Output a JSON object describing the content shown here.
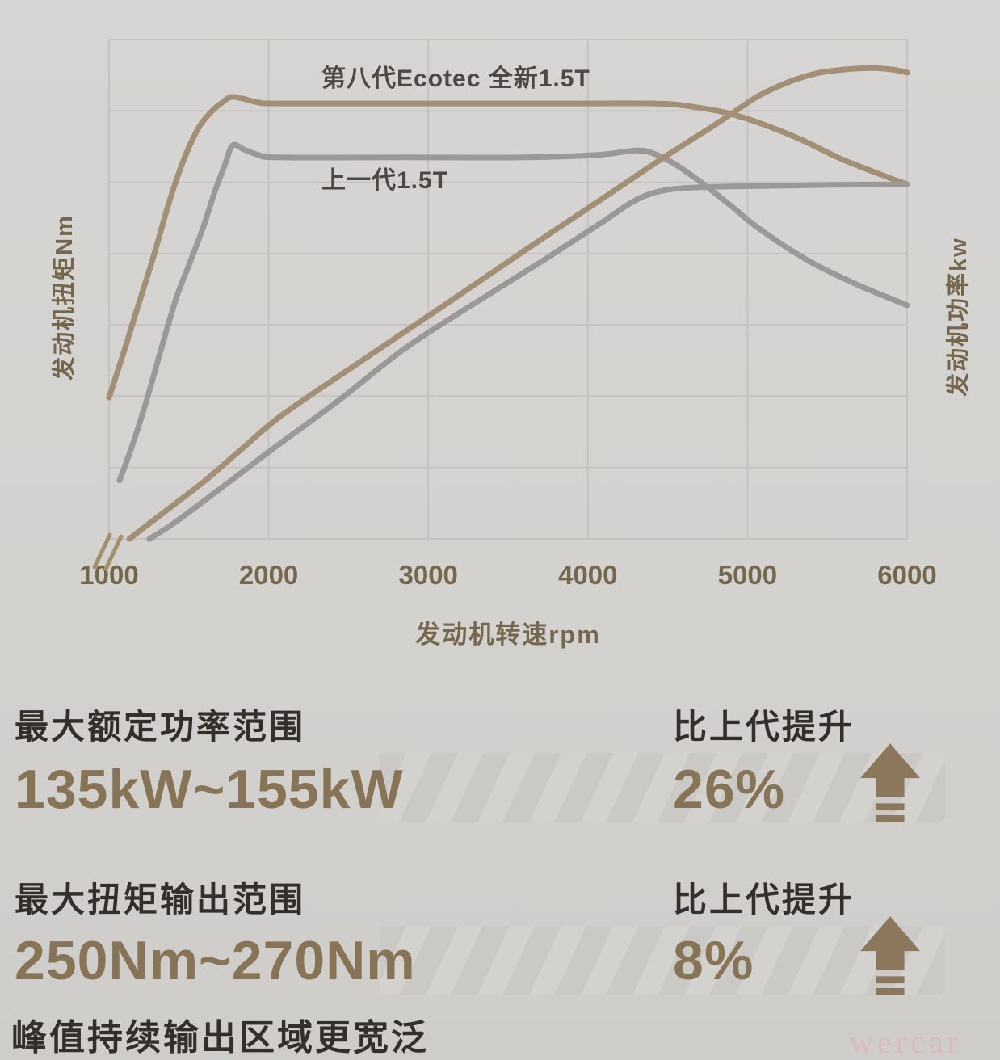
{
  "chart_data": {
    "type": "line",
    "title": "",
    "xlabel": "发动机转速rpm",
    "y_left_title": "发动机扭矩Nm",
    "y_right_title": "发动机功率kw",
    "x_range": [
      1000,
      6000
    ],
    "x_ticks": [
      "1000",
      "2000",
      "3000",
      "4000",
      "5000",
      "6000"
    ],
    "x_tick_values": [
      1000,
      2000,
      3000,
      4000,
      5000,
      6000
    ],
    "grid": {
      "h_lines": 8,
      "visible": true
    },
    "value_scale_note": "y axes have no numeric tick labels; point values are fractions of plot height (0 = axis bottom, 1 = plot top)",
    "annotations": {
      "new_label": "第八代Ecotec 全新1.5T",
      "old_label": "上一代1.5T"
    },
    "colors": {
      "new": "#a28f75",
      "old": "#9b9997",
      "grid": "#c5c3c0",
      "tick": "#75664e",
      "break_mark": "#a2906f"
    },
    "series": [
      {
        "name": "new-gen-torque",
        "generation": "第八代Ecotec 全新1.5T",
        "axis": "left-torque",
        "color": "new",
        "points": [
          [
            1000,
            0.283
          ],
          [
            1101,
            0.383
          ],
          [
            1187,
            0.472
          ],
          [
            1278,
            0.565
          ],
          [
            1380,
            0.678
          ],
          [
            1471,
            0.762
          ],
          [
            1562,
            0.824
          ],
          [
            1643,
            0.856
          ],
          [
            1709,
            0.874
          ],
          [
            1764,
            0.885
          ],
          [
            1835,
            0.882
          ],
          [
            1936,
            0.874
          ],
          [
            2063,
            0.872
          ],
          [
            2847,
            0.872
          ],
          [
            3859,
            0.872
          ],
          [
            4416,
            0.872
          ],
          [
            4644,
            0.866
          ],
          [
            4871,
            0.853
          ],
          [
            5074,
            0.833
          ],
          [
            5327,
            0.801
          ],
          [
            5580,
            0.762
          ],
          [
            5808,
            0.733
          ],
          [
            6000,
            0.71
          ]
        ]
      },
      {
        "name": "old-gen-torque",
        "generation": "上一代1.5T",
        "axis": "left-torque",
        "color": "old",
        "points": [
          [
            1066,
            0.117
          ],
          [
            1152,
            0.193
          ],
          [
            1243,
            0.286
          ],
          [
            1329,
            0.383
          ],
          [
            1420,
            0.481
          ],
          [
            1506,
            0.553
          ],
          [
            1592,
            0.626
          ],
          [
            1658,
            0.691
          ],
          [
            1724,
            0.748
          ],
          [
            1774,
            0.788
          ],
          [
            1845,
            0.78
          ],
          [
            1936,
            0.769
          ],
          [
            2063,
            0.764
          ],
          [
            2847,
            0.764
          ],
          [
            3606,
            0.764
          ],
          [
            4062,
            0.769
          ],
          [
            4305,
            0.778
          ],
          [
            4426,
            0.77
          ],
          [
            4558,
            0.748
          ],
          [
            4710,
            0.714
          ],
          [
            4897,
            0.667
          ],
          [
            5074,
            0.621
          ],
          [
            5377,
            0.558
          ],
          [
            5681,
            0.51
          ],
          [
            6000,
            0.468
          ]
        ]
      },
      {
        "name": "new-gen-power",
        "generation": "第八代Ecotec 全新1.5T",
        "axis": "right-power",
        "color": "new",
        "points": [
          [
            1127,
            0.0
          ],
          [
            1253,
            0.031
          ],
          [
            1405,
            0.068
          ],
          [
            1607,
            0.118
          ],
          [
            1835,
            0.181
          ],
          [
            2088,
            0.249
          ],
          [
            2594,
            0.359
          ],
          [
            3100,
            0.468
          ],
          [
            3606,
            0.578
          ],
          [
            4112,
            0.686
          ],
          [
            4466,
            0.762
          ],
          [
            4770,
            0.824
          ],
          [
            4907,
            0.853
          ],
          [
            5074,
            0.888
          ],
          [
            5251,
            0.914
          ],
          [
            5428,
            0.932
          ],
          [
            5605,
            0.94
          ],
          [
            5782,
            0.943
          ],
          [
            5909,
            0.94
          ],
          [
            6000,
            0.934
          ]
        ]
      },
      {
        "name": "old-gen-power",
        "generation": "上一代1.5T",
        "axis": "right-power",
        "color": "old",
        "points": [
          [
            1253,
            0.0
          ],
          [
            1405,
            0.031
          ],
          [
            1582,
            0.073
          ],
          [
            1810,
            0.128
          ],
          [
            2063,
            0.189
          ],
          [
            2442,
            0.278
          ],
          [
            2847,
            0.38
          ],
          [
            3252,
            0.464
          ],
          [
            3657,
            0.545
          ],
          [
            3910,
            0.597
          ],
          [
            4112,
            0.639
          ],
          [
            4264,
            0.672
          ],
          [
            4390,
            0.691
          ],
          [
            4542,
            0.701
          ],
          [
            4770,
            0.705
          ],
          [
            5125,
            0.707
          ],
          [
            5529,
            0.709
          ],
          [
            6000,
            0.71
          ]
        ]
      }
    ]
  },
  "stats": {
    "accent_color": "#877457",
    "rows": [
      {
        "label": "最大额定功率范围",
        "value": "135kW~155kW",
        "delta_label": "比上代提升",
        "delta_value": "26%"
      },
      {
        "label": "最大扭矩输出范围",
        "value": "250Nm~270Nm",
        "delta_label": "比上代提升",
        "delta_value": "8%"
      }
    ],
    "caption": "峰值持续输出区域更宽泛"
  },
  "watermark": {
    "text": "wercar"
  }
}
